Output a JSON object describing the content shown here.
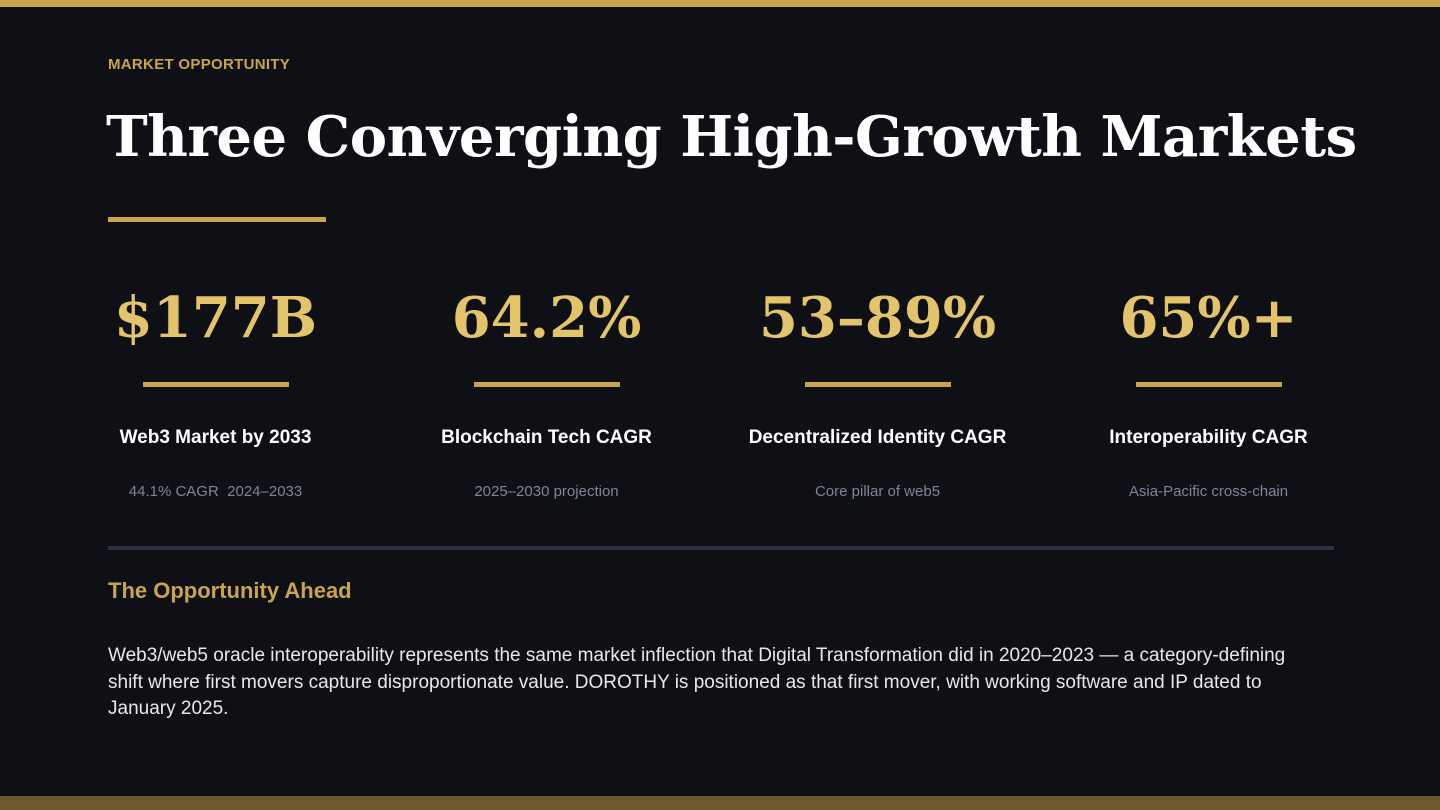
{
  "colors": {
    "background": "#0e1015",
    "accent": "#c9a44c",
    "stat_value": "#e3c46a",
    "title": "#ffffff",
    "muted": "#7d8597",
    "divider": "#2a3140"
  },
  "header": {
    "eyebrow": "MARKET OPPORTUNITY",
    "title": "Three Converging High-Growth Markets"
  },
  "stats": [
    {
      "value": "$177B",
      "label": "Web3 Market by 2033",
      "sub": "44.1% CAGR  2024–2033"
    },
    {
      "value": "64.2%",
      "label": "Blockchain Tech CAGR",
      "sub": "2025–2030 projection"
    },
    {
      "value": "53–89%",
      "label": "Decentralized Identity CAGR",
      "sub": "Core pillar of web5"
    },
    {
      "value": "65%+",
      "label": "Interoperability CAGR",
      "sub": "Asia-Pacific cross-chain"
    }
  ],
  "opportunity": {
    "heading": "The Opportunity Ahead",
    "body": "Web3/web5 oracle interoperability represents the same market inflection that Digital Transformation did in 2020–2023 — a category-defining shift where first movers capture disproportionate value. DOROTHY is positioned as that first mover, with working software and IP dated to January 2025."
  }
}
